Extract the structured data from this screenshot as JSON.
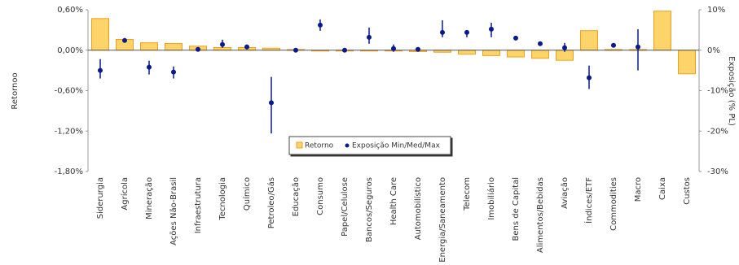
{
  "chart_data": {
    "type": "bar_errorbar",
    "y_label": "Retornoo",
    "y2_label": "Exposição (% PL)",
    "categories": [
      "Siderurgia",
      "Agrícola",
      "Mineração",
      "Ações Não-Brasil",
      "Infraestrutura",
      "Tecnologia",
      "Químico",
      "Petroleo/Gás",
      "Educação",
      "Consumo",
      "Papel/Celulose",
      "Bancos/Seguros",
      "Health Care",
      "Automobilístico",
      "Energia/Saneamento",
      "Telecom",
      "Imobiliário",
      "Bens de Capital",
      "Alimentos/Bebidas",
      "Aviação",
      "Índices/ETF",
      "Commodities",
      "Macro",
      "Caixa",
      "Custos"
    ],
    "series": [
      {
        "name": "Retorno",
        "color": "#fcd46a",
        "values": [
          0.47,
          0.16,
          0.11,
          0.1,
          0.06,
          0.04,
          0.04,
          0.03,
          0.01,
          -0.01,
          -0.01,
          -0.01,
          -0.01,
          -0.02,
          -0.03,
          -0.06,
          -0.08,
          -0.1,
          -0.12,
          -0.15,
          0.29,
          0.01,
          0.01,
          0.58,
          -0.35
        ]
      },
      {
        "name": "Exposição Min/Med/Max",
        "color": "#0a1a8c",
        "axis": "y2",
        "values": [
          -5,
          2.4,
          -4.2,
          -5.4,
          0.2,
          1.4,
          0.8,
          -13,
          0,
          6.2,
          0,
          3.2,
          0.4,
          0.2,
          4.4,
          4.4,
          5.2,
          3,
          1.6,
          0.6,
          -6.8,
          1.2,
          0.8,
          null,
          null
        ],
        "min": [
          -7,
          2,
          -6,
          -7,
          0,
          0.6,
          0.2,
          -20.6,
          -0.2,
          4.8,
          -0.2,
          1.6,
          -0.4,
          -0.2,
          3.2,
          3.2,
          3.2,
          2.8,
          1.2,
          -0.4,
          -9.6,
          0.8,
          -5,
          null,
          null
        ],
        "max": [
          -2.2,
          3,
          -2.6,
          -4,
          0.5,
          2.6,
          1.4,
          -6.6,
          0.2,
          7.6,
          0.2,
          5.6,
          1.4,
          0.6,
          7.4,
          4.8,
          6.8,
          3.2,
          2,
          1.8,
          -3.8,
          1.6,
          5.2,
          null,
          null
        ]
      }
    ],
    "ylim": [
      -1.8,
      0.6
    ],
    "yticks": [
      {
        "value": -1.8,
        "label": "-1,80%"
      },
      {
        "value": -1.2,
        "label": "-1,20%"
      },
      {
        "value": -0.6,
        "label": "-0,60%"
      },
      {
        "value": 0,
        "label": "0,00%"
      },
      {
        "value": 0.6,
        "label": "0,60%"
      }
    ],
    "y2lim": [
      -30,
      10
    ],
    "y2ticks": [
      {
        "value": -30,
        "label": "-30%"
      },
      {
        "value": -20,
        "label": "-20%"
      },
      {
        "value": -10,
        "label": "-10%"
      },
      {
        "value": 0,
        "label": "0%"
      },
      {
        "value": 10,
        "label": "10%"
      }
    ]
  }
}
